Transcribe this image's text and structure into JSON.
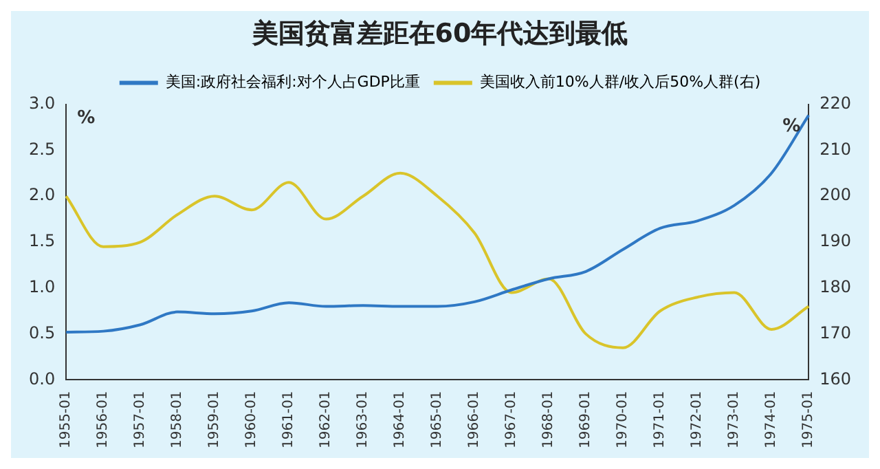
{
  "chart_data": {
    "type": "line",
    "title": "美国贫富差距在60年代达到最低",
    "ylabel": "%",
    "y2label": "%",
    "categories": [
      "1955-01",
      "1956-01",
      "1957-01",
      "1958-01",
      "1959-01",
      "1960-01",
      "1961-01",
      "1962-01",
      "1963-01",
      "1964-01",
      "1965-01",
      "1966-01",
      "1967-01",
      "1968-01",
      "1969-01",
      "1970-01",
      "1971-01",
      "1972-01",
      "1973-01",
      "1974-01",
      "1975-01"
    ],
    "series": [
      {
        "name": "美国:政府社会福利:对个人占GDP比重",
        "color": "#2f78c4",
        "values": [
          0.52,
          0.53,
          0.6,
          0.74,
          0.72,
          0.75,
          0.84,
          0.8,
          0.81,
          0.8,
          0.8,
          0.85,
          0.98,
          1.1,
          1.18,
          1.42,
          1.65,
          1.73,
          1.9,
          2.25,
          2.88
        ]
      },
      {
        "name": "美国收入前10%人群/收入后50%人群(右)",
        "color": "#d9c42a",
        "axis": "y2",
        "values": [
          200,
          189,
          190,
          196,
          200,
          197,
          203,
          195,
          200,
          205,
          200,
          192,
          179,
          182,
          170,
          167,
          175,
          178,
          179,
          171,
          176
        ]
      }
    ],
    "ylim": [
      0,
      3
    ],
    "yticks": [
      {
        "value": 0,
        "label": "0.0"
      },
      {
        "value": 0.5,
        "label": "0.5"
      },
      {
        "value": 1,
        "label": "1.0"
      },
      {
        "value": 1.5,
        "label": "1.5"
      },
      {
        "value": 2,
        "label": "2.0"
      },
      {
        "value": 2.5,
        "label": "2.5"
      },
      {
        "value": 3,
        "label": "3.0"
      }
    ],
    "y2lim": [
      160,
      220
    ],
    "y2ticks": [
      160,
      170,
      180,
      190,
      200,
      210,
      220
    ],
    "grid": false,
    "legend": "top",
    "marker": "none",
    "line_style": "solid"
  }
}
